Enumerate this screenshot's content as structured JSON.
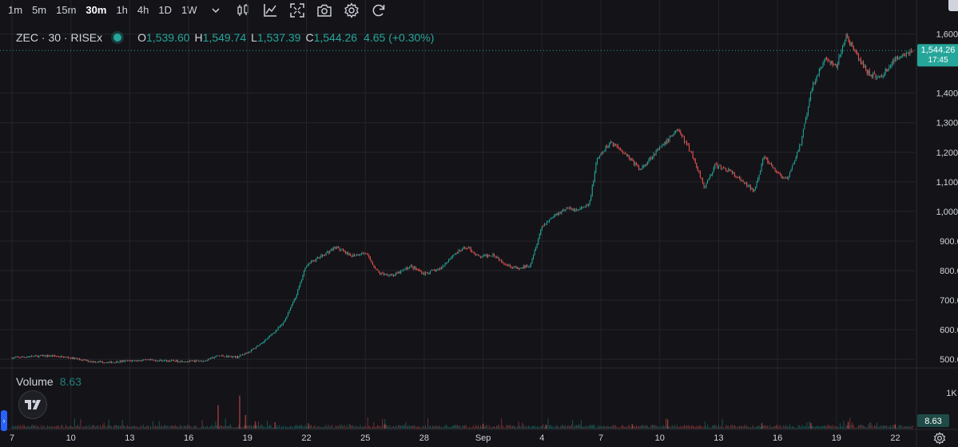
{
  "toolbar": {
    "timeframes": [
      "1m",
      "5m",
      "15m",
      "30m",
      "1h",
      "4h",
      "1D",
      "1W"
    ],
    "active_timeframe": "30m",
    "icons": [
      "chevron-down-icon",
      "candles-icon",
      "indicators-icon",
      "fullscreen-icon",
      "camera-icon",
      "gear-icon",
      "refresh-icon"
    ]
  },
  "legend": {
    "symbol": "ZEC · 30 · RISEx",
    "open_label": "O",
    "open": "1,539.60",
    "high_label": "H",
    "high": "1,549.74",
    "low_label": "L",
    "low": "1,537.39",
    "close_label": "C",
    "close": "1,544.26",
    "change": "4.65 (+0.30%)",
    "status_color": "#26a69a"
  },
  "volume_legend": {
    "label": "Volume",
    "value": "8.63"
  },
  "price_label": {
    "price": "1,544.26",
    "countdown": "17:45"
  },
  "volume_label": "8.63",
  "colors": {
    "up": "#26a69a",
    "down": "#ef5350",
    "grid": "#24252b",
    "axis_text": "#d1d4dc",
    "background": "#131318"
  },
  "chart_data": {
    "type": "line",
    "title": "",
    "xlabel": "",
    "ylabel": "",
    "y_tick_labels": [
      "500.00",
      "600.00",
      "700.00",
      "800.00",
      "900.00",
      "1,000.00",
      "1,100.00",
      "1,200.00",
      "1,300.00",
      "1,400.00",
      "1,600.00"
    ],
    "ylim": [
      495,
      1607
    ],
    "x_tick_labels": [
      "7",
      "10",
      "13",
      "16",
      "19",
      "22",
      "25",
      "28",
      "Sep",
      "4",
      "7",
      "10",
      "13",
      "16",
      "19",
      "22"
    ],
    "x_tick_days": [
      7,
      10,
      13,
      16,
      19,
      22,
      25,
      28,
      31,
      34,
      37,
      40,
      43,
      46,
      49,
      52
    ],
    "xlim_days": [
      7,
      53.2
    ],
    "grid": true,
    "series": [
      {
        "name": "",
        "points": [
          [
            7.0,
            505
          ],
          [
            8.0,
            510
          ],
          [
            9.0,
            512
          ],
          [
            10.0,
            505
          ],
          [
            11.0,
            493
          ],
          [
            12.0,
            490
          ],
          [
            13.0,
            495
          ],
          [
            14.0,
            497
          ],
          [
            15.0,
            495
          ],
          [
            16.0,
            493
          ],
          [
            16.8,
            495
          ],
          [
            17.5,
            512
          ],
          [
            18.5,
            508
          ],
          [
            19.2,
            530
          ],
          [
            20.0,
            570
          ],
          [
            20.8,
            620
          ],
          [
            21.5,
            720
          ],
          [
            22.0,
            820
          ],
          [
            22.8,
            850
          ],
          [
            23.5,
            880
          ],
          [
            24.2,
            850
          ],
          [
            25.0,
            860
          ],
          [
            25.7,
            790
          ],
          [
            26.5,
            785
          ],
          [
            27.3,
            815
          ],
          [
            28.0,
            790
          ],
          [
            28.8,
            805
          ],
          [
            29.5,
            855
          ],
          [
            30.2,
            880
          ],
          [
            30.8,
            845
          ],
          [
            31.5,
            855
          ],
          [
            32.2,
            820
          ],
          [
            32.8,
            805
          ],
          [
            33.4,
            820
          ],
          [
            34.0,
            950
          ],
          [
            34.6,
            985
          ],
          [
            35.2,
            1010
          ],
          [
            35.8,
            1005
          ],
          [
            36.4,
            1020
          ],
          [
            36.8,
            1175
          ],
          [
            37.5,
            1235
          ],
          [
            38.2,
            1200
          ],
          [
            39.0,
            1140
          ],
          [
            39.7,
            1195
          ],
          [
            40.2,
            1225
          ],
          [
            40.9,
            1280
          ],
          [
            41.6,
            1200
          ],
          [
            42.3,
            1080
          ],
          [
            42.8,
            1155
          ],
          [
            43.5,
            1140
          ],
          [
            44.2,
            1100
          ],
          [
            44.8,
            1070
          ],
          [
            45.3,
            1185
          ],
          [
            45.9,
            1135
          ],
          [
            46.5,
            1105
          ],
          [
            47.2,
            1235
          ],
          [
            47.8,
            1430
          ],
          [
            48.4,
            1515
          ],
          [
            49.0,
            1490
          ],
          [
            49.5,
            1595
          ],
          [
            50.0,
            1530
          ],
          [
            50.6,
            1470
          ],
          [
            51.2,
            1450
          ],
          [
            51.8,
            1500
          ],
          [
            52.3,
            1530
          ],
          [
            52.9,
            1544.26
          ]
        ]
      }
    ],
    "current_price": 1544.26,
    "volume_series": {
      "name": "Volume",
      "axis_tick_labels": [
        "1K"
      ],
      "spikes": [
        [
          17.5,
          650
        ],
        [
          18.6,
          920
        ],
        [
          18.9,
          380
        ],
        [
          19.4,
          200
        ],
        [
          20.4,
          180
        ],
        [
          22.1,
          150
        ],
        [
          26.0,
          120
        ],
        [
          31.0,
          140
        ],
        [
          34.2,
          110
        ],
        [
          38.6,
          130
        ],
        [
          40.4,
          260
        ],
        [
          45.2,
          150
        ],
        [
          47.7,
          160
        ],
        [
          49.6,
          190
        ],
        [
          52.0,
          120
        ]
      ]
    }
  }
}
